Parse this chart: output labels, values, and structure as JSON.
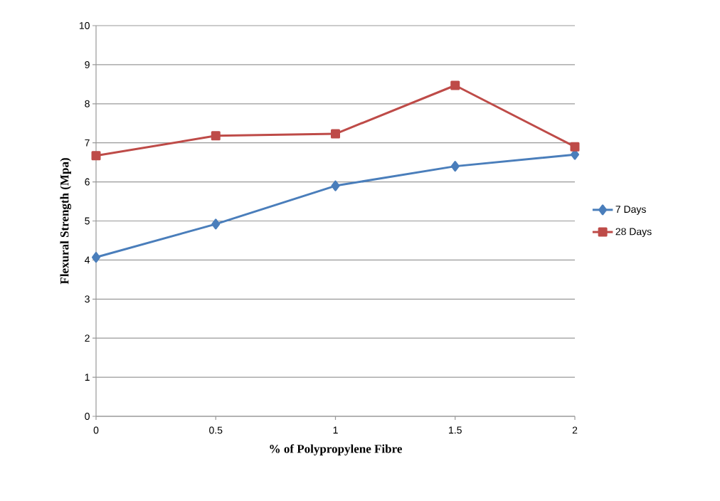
{
  "chart_data": {
    "type": "line",
    "xlabel": "% of Polypropylene Fibre",
    "ylabel": "Flexural Strength (Mpa)",
    "x": [
      0,
      0.5,
      1,
      1.5,
      2
    ],
    "series": [
      {
        "name": "7 Days",
        "color": "#4a7ebb",
        "marker": "diamond",
        "values": [
          4.07,
          4.92,
          5.9,
          6.4,
          6.7
        ]
      },
      {
        "name": "28 Days",
        "color": "#be4b48",
        "marker": "square",
        "values": [
          6.67,
          7.18,
          7.23,
          8.47,
          6.9
        ]
      }
    ],
    "xlim": [
      0,
      2
    ],
    "xticks": [
      0,
      0.5,
      1,
      1.5,
      2
    ],
    "ylim": [
      0,
      10
    ],
    "yticks": [
      0,
      1,
      2,
      3,
      4,
      5,
      6,
      7,
      8,
      9,
      10
    ],
    "grid": "y",
    "legend": "right",
    "line_style": "solid"
  }
}
